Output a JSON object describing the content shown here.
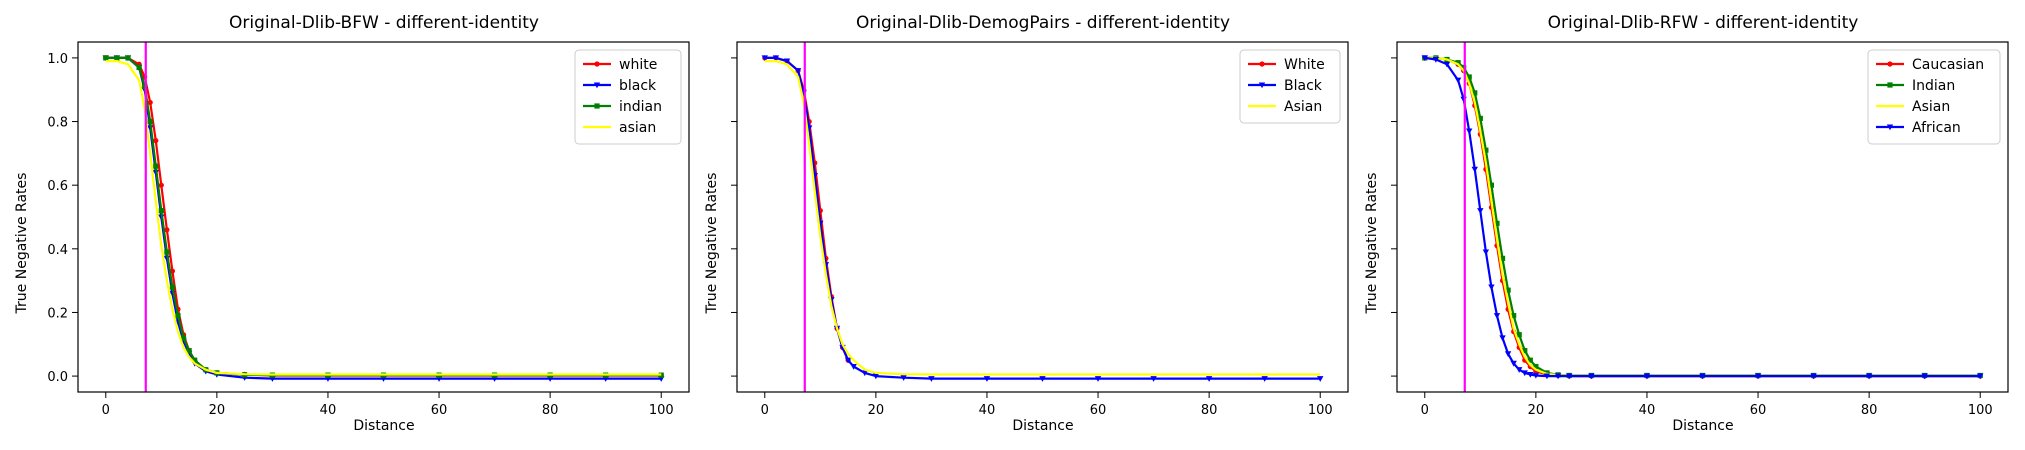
{
  "figure": {
    "background": "#ffffff"
  },
  "chart_data": [
    {
      "type": "line",
      "title": "Original-Dlib-BFW - different-identity",
      "xlabel": "Distance",
      "ylabel": "True Negative Rates",
      "xlim": [
        -5,
        105
      ],
      "ylim": [
        -0.05,
        1.05
      ],
      "xticks": [
        0,
        20,
        40,
        60,
        80,
        100
      ],
      "yticks": [
        0.0,
        0.2,
        0.4,
        0.6,
        0.8,
        1.0
      ],
      "ytick_labels": [
        "0.0",
        "0.2",
        "0.4",
        "0.6",
        "0.8",
        "1.0"
      ],
      "show_ytick_labels": true,
      "grid": false,
      "legend_position": "top-right",
      "threshold_line": {
        "x": 7.2,
        "color": "#ff00ff"
      },
      "series": [
        {
          "name": "white",
          "color": "#ff0000",
          "marker": "circle",
          "x": [
            0,
            2,
            4,
            6,
            7,
            8,
            9,
            10,
            11,
            12,
            13,
            14,
            15,
            16,
            18,
            20,
            25,
            30,
            40,
            50,
            60,
            70,
            80,
            90,
            100
          ],
          "y": [
            1.0,
            1.0,
            1.0,
            0.98,
            0.94,
            0.86,
            0.74,
            0.6,
            0.46,
            0.33,
            0.21,
            0.13,
            0.08,
            0.05,
            0.02,
            0.01,
            0.005,
            0.002,
            0.002,
            0.002,
            0.002,
            0.002,
            0.002,
            0.002,
            0.002
          ]
        },
        {
          "name": "black",
          "color": "#0000ff",
          "marker": "triangle",
          "x": [
            0,
            2,
            4,
            6,
            7,
            8,
            9,
            10,
            11,
            12,
            13,
            14,
            15,
            16,
            18,
            20,
            25,
            30,
            40,
            50,
            60,
            70,
            80,
            90,
            100
          ],
          "y": [
            1.0,
            1.0,
            1.0,
            0.97,
            0.9,
            0.78,
            0.64,
            0.5,
            0.37,
            0.26,
            0.17,
            0.11,
            0.07,
            0.04,
            0.015,
            0.005,
            -0.005,
            -0.008,
            -0.008,
            -0.008,
            -0.008,
            -0.008,
            -0.008,
            -0.008,
            -0.008
          ]
        },
        {
          "name": "indian",
          "color": "#008000",
          "marker": "square",
          "x": [
            0,
            2,
            4,
            6,
            7,
            8,
            9,
            10,
            11,
            12,
            13,
            14,
            15,
            16,
            18,
            20,
            25,
            30,
            40,
            50,
            60,
            70,
            80,
            90,
            100
          ],
          "y": [
            1.0,
            1.0,
            1.0,
            0.97,
            0.91,
            0.8,
            0.66,
            0.52,
            0.39,
            0.28,
            0.19,
            0.12,
            0.08,
            0.05,
            0.02,
            0.01,
            0.004,
            0.003,
            0.003,
            0.003,
            0.003,
            0.003,
            0.003,
            0.003,
            0.003
          ]
        },
        {
          "name": "asian",
          "color": "#ffff00",
          "marker": "none",
          "x": [
            0,
            2,
            4,
            6,
            7,
            8,
            9,
            10,
            11,
            12,
            13,
            14,
            15,
            16,
            18,
            20,
            25,
            30,
            40,
            50,
            60,
            70,
            80,
            90,
            100
          ],
          "y": [
            0.99,
            0.99,
            0.98,
            0.93,
            0.84,
            0.7,
            0.55,
            0.41,
            0.3,
            0.21,
            0.14,
            0.09,
            0.06,
            0.04,
            0.02,
            0.01,
            0.006,
            0.005,
            0.005,
            0.005,
            0.005,
            0.005,
            0.005,
            0.005,
            0.005
          ]
        }
      ]
    },
    {
      "type": "line",
      "title": "Original-Dlib-DemogPairs - different-identity",
      "xlabel": "Distance",
      "ylabel": "True Negative Rates",
      "xlim": [
        -5,
        105
      ],
      "ylim": [
        -0.05,
        1.05
      ],
      "xticks": [
        0,
        20,
        40,
        60,
        80,
        100
      ],
      "yticks": [
        0.0,
        0.2,
        0.4,
        0.6,
        0.8,
        1.0
      ],
      "show_ytick_labels": false,
      "grid": false,
      "legend_position": "top-right",
      "threshold_line": {
        "x": 7.2,
        "color": "#ff00ff"
      },
      "series": [
        {
          "name": "White",
          "color": "#ff0000",
          "marker": "circle",
          "x": [
            0,
            2,
            4,
            6,
            7,
            8,
            9,
            10,
            11,
            12,
            13,
            14,
            15
          ],
          "y": [
            1.0,
            1.0,
            0.99,
            0.96,
            0.9,
            0.8,
            0.67,
            0.52,
            0.37,
            0.25,
            0.15,
            0.09,
            0.05
          ]
        },
        {
          "name": "Black",
          "color": "#0000ff",
          "marker": "triangle",
          "x": [
            0,
            2,
            4,
            6,
            7,
            8,
            9,
            10,
            11,
            12,
            13,
            14,
            15,
            16,
            18,
            20,
            25,
            30,
            40,
            50,
            60,
            70,
            80,
            90,
            100
          ],
          "y": [
            1.0,
            1.0,
            0.99,
            0.96,
            0.89,
            0.78,
            0.63,
            0.48,
            0.35,
            0.24,
            0.15,
            0.09,
            0.05,
            0.03,
            0.01,
            0.0,
            -0.005,
            -0.008,
            -0.008,
            -0.008,
            -0.008,
            -0.008,
            -0.008,
            -0.008,
            -0.008
          ]
        },
        {
          "name": "Asian",
          "color": "#ffff00",
          "marker": "none",
          "x": [
            0,
            2,
            4,
            6,
            7,
            8,
            9,
            10,
            11,
            12,
            13,
            14,
            15,
            16,
            18,
            20,
            25,
            30,
            40,
            50,
            60,
            70,
            80,
            90,
            100
          ],
          "y": [
            0.99,
            0.99,
            0.98,
            0.94,
            0.86,
            0.73,
            0.58,
            0.44,
            0.32,
            0.22,
            0.15,
            0.1,
            0.07,
            0.05,
            0.02,
            0.01,
            0.006,
            0.005,
            0.005,
            0.005,
            0.005,
            0.005,
            0.005,
            0.005,
            0.005
          ]
        }
      ]
    },
    {
      "type": "line",
      "title": "Original-Dlib-RFW - different-identity",
      "xlabel": "Distance",
      "ylabel": "True Negative Rates",
      "xlim": [
        -5,
        105
      ],
      "ylim": [
        -0.05,
        1.05
      ],
      "xticks": [
        0,
        20,
        40,
        60,
        80,
        100
      ],
      "yticks": [
        0.0,
        0.2,
        0.4,
        0.6,
        0.8,
        1.0
      ],
      "show_ytick_labels": false,
      "grid": false,
      "legend_position": "top-right",
      "threshold_line": {
        "x": 7.2,
        "color": "#ff00ff"
      },
      "series": [
        {
          "name": "Caucasian",
          "color": "#ff0000",
          "marker": "circle",
          "x": [
            0,
            2,
            4,
            6,
            7,
            8,
            9,
            10,
            11,
            12,
            13,
            14,
            15,
            16,
            17,
            18,
            19,
            20,
            22,
            24,
            26,
            30,
            40,
            50,
            60,
            70,
            80,
            90,
            100
          ],
          "y": [
            1.0,
            1.0,
            0.995,
            0.98,
            0.96,
            0.92,
            0.85,
            0.76,
            0.65,
            0.53,
            0.41,
            0.3,
            0.21,
            0.14,
            0.09,
            0.05,
            0.03,
            0.015,
            0.005,
            0.002,
            0.0,
            0.0,
            0.0,
            0.0,
            0.0,
            0.0,
            0.0,
            0.0,
            0.0
          ]
        },
        {
          "name": "Indian",
          "color": "#008000",
          "marker": "square",
          "x": [
            0,
            2,
            4,
            6,
            7,
            8,
            9,
            10,
            11,
            12,
            13,
            14,
            15,
            16,
            17,
            18,
            19,
            20,
            22,
            24,
            26,
            30,
            40,
            50,
            60,
            70,
            80,
            90,
            100
          ],
          "y": [
            1.0,
            1.0,
            0.995,
            0.985,
            0.97,
            0.94,
            0.89,
            0.81,
            0.71,
            0.6,
            0.48,
            0.37,
            0.27,
            0.19,
            0.13,
            0.08,
            0.05,
            0.03,
            0.01,
            0.004,
            0.002,
            0.002,
            0.002,
            0.002,
            0.002,
            0.002,
            0.002,
            0.002,
            0.002
          ]
        },
        {
          "name": "Asian",
          "color": "#ffff00",
          "marker": "none",
          "x": [
            0,
            2,
            4,
            6,
            7,
            8,
            9,
            10,
            11,
            12,
            13,
            14,
            15,
            16,
            17,
            18,
            19,
            20,
            22,
            24,
            26,
            30,
            40,
            50,
            60,
            70,
            80,
            90,
            100
          ],
          "y": [
            1.0,
            1.0,
            0.995,
            0.98,
            0.96,
            0.92,
            0.86,
            0.77,
            0.67,
            0.55,
            0.43,
            0.32,
            0.23,
            0.15,
            0.1,
            0.06,
            0.035,
            0.02,
            0.007,
            0.003,
            0.001,
            0.001,
            0.001,
            0.001,
            0.001,
            0.001,
            0.001,
            0.001,
            0.001
          ]
        },
        {
          "name": "African",
          "color": "#0000ff",
          "marker": "triangle",
          "x": [
            0,
            2,
            4,
            6,
            7,
            8,
            9,
            10,
            11,
            12,
            13,
            14,
            15,
            16,
            17,
            18,
            19,
            20,
            22,
            24,
            26,
            30,
            40,
            50,
            60,
            70,
            80,
            90,
            100
          ],
          "y": [
            1.0,
            0.995,
            0.98,
            0.93,
            0.87,
            0.77,
            0.65,
            0.52,
            0.39,
            0.28,
            0.19,
            0.12,
            0.07,
            0.04,
            0.02,
            0.01,
            0.005,
            0.002,
            0.0,
            0.0,
            0.0,
            0.0,
            0.0,
            0.0,
            0.0,
            0.0,
            0.0,
            0.0,
            0.0
          ]
        }
      ]
    }
  ]
}
